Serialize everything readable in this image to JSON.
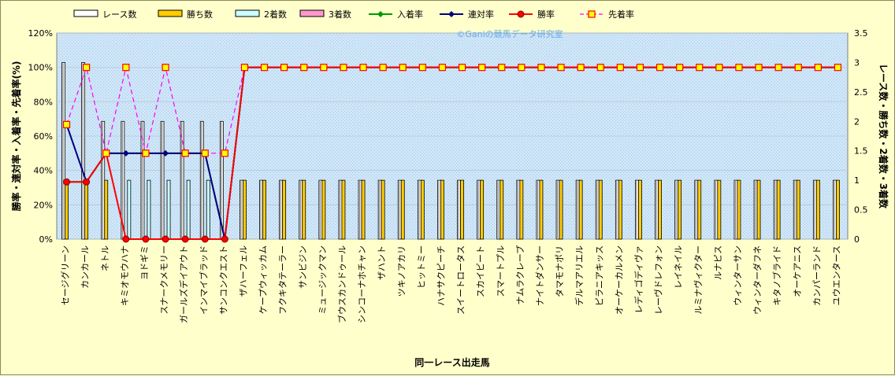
{
  "chart_data": {
    "type": "bar",
    "xlabel": "同一レース出走馬",
    "ylabel_left": "勝率・連対率・入着率・先着率(%)",
    "ylabel_right": "レース数・勝ち数・2着数・3着数",
    "watermark": "©Ganiの競馬データ研究室",
    "ylim_left": [
      0,
      120
    ],
    "ylim_right": [
      0,
      3.5
    ],
    "yticks_left": [
      "0%",
      "20%",
      "40%",
      "60%",
      "80%",
      "100%",
      "120%"
    ],
    "yticks_right": [
      "0",
      "0.5",
      "1",
      "1.5",
      "2",
      "2.5",
      "3",
      "3.5"
    ],
    "grid": true,
    "legend_position": "top",
    "categories": [
      "セージグリーン",
      "カンカール",
      "ネトル",
      "キミオモウハナ",
      "ヨドギミ",
      "スナークメモリー",
      "ガールズデイアウト",
      "インマイブラッド",
      "サンコンクエスト",
      "ザハーフェル",
      "ケープウィッカム",
      "フクキタテーラー",
      "サンビジン",
      "ミュージックマン",
      "ブウスカンドゥール",
      "シンコーナホチャン",
      "ザハント",
      "ツキノアカリ",
      "ヒットミー",
      "ハナサクピーチ",
      "スイートロータス",
      "スカイビート",
      "スマートプル",
      "ナムラクレープ",
      "ナイトダンサー",
      "タマモナポリ",
      "デルマアリエル",
      "ピラニアキッス",
      "オーケーカルメン",
      "レディゴディヴァ",
      "レーヴドレフォン",
      "レイネイル",
      "ルミナヴィクター",
      "ルナピス",
      "ウィンターサン",
      "ウィンターダフネ",
      "キタノブライド",
      "オーケアニス",
      "カンパーランド",
      "ユウエンタース"
    ],
    "series": [
      {
        "name": "レース数",
        "axis": "right",
        "kind": "bar",
        "color": "#ffffff",
        "values": [
          3,
          3,
          2,
          2,
          2,
          2,
          2,
          2,
          2,
          1,
          1,
          1,
          1,
          1,
          1,
          1,
          1,
          1,
          1,
          1,
          1,
          1,
          1,
          1,
          1,
          1,
          1,
          1,
          1,
          1,
          1,
          1,
          1,
          1,
          1,
          1,
          1,
          1,
          1,
          1
        ]
      },
      {
        "name": "勝ち数",
        "axis": "right",
        "kind": "bar",
        "color": "#ffcc00",
        "values": [
          1,
          1,
          1,
          0,
          0,
          0,
          0,
          0,
          0,
          1,
          1,
          1,
          1,
          1,
          1,
          1,
          1,
          1,
          1,
          1,
          1,
          1,
          1,
          1,
          1,
          1,
          1,
          1,
          1,
          1,
          1,
          1,
          1,
          1,
          1,
          1,
          1,
          1,
          1,
          1
        ]
      },
      {
        "name": "2着数",
        "axis": "right",
        "kind": "bar",
        "color": "#ccffff",
        "values": [
          0,
          0,
          0,
          1,
          1,
          1,
          1,
          1,
          0,
          0,
          0,
          0,
          0,
          0,
          0,
          0,
          0,
          0,
          0,
          0,
          0,
          0,
          0,
          0,
          0,
          0,
          0,
          0,
          0,
          0,
          0,
          0,
          0,
          0,
          0,
          0,
          0,
          0,
          0,
          0
        ]
      },
      {
        "name": "3着数",
        "axis": "right",
        "kind": "bar",
        "color": "#ff99cc",
        "values": [
          0,
          0,
          0,
          0,
          0,
          0,
          0,
          0,
          0,
          0,
          0,
          0,
          0,
          0,
          0,
          0,
          0,
          0,
          0,
          0,
          0,
          0,
          0,
          0,
          0,
          0,
          0,
          0,
          0,
          0,
          0,
          0,
          0,
          0,
          0,
          0,
          0,
          0,
          0,
          0
        ]
      },
      {
        "name": "入着率",
        "axis": "left",
        "kind": "line",
        "color": "#009900",
        "values": [
          33.3,
          33.3,
          50,
          50,
          50,
          50,
          50,
          50,
          0,
          100,
          100,
          100,
          100,
          100,
          100,
          100,
          100,
          100,
          100,
          100,
          100,
          100,
          100,
          100,
          100,
          100,
          100,
          100,
          100,
          100,
          100,
          100,
          100,
          100,
          100,
          100,
          100,
          100,
          100,
          100
        ]
      },
      {
        "name": "連対率",
        "axis": "left",
        "kind": "line",
        "color": "#000080",
        "values": [
          66.7,
          33.3,
          50,
          50,
          50,
          50,
          50,
          50,
          0,
          100,
          100,
          100,
          100,
          100,
          100,
          100,
          100,
          100,
          100,
          100,
          100,
          100,
          100,
          100,
          100,
          100,
          100,
          100,
          100,
          100,
          100,
          100,
          100,
          100,
          100,
          100,
          100,
          100,
          100,
          100
        ]
      },
      {
        "name": "勝率",
        "axis": "left",
        "kind": "line",
        "color": "#ff0000",
        "values": [
          33.3,
          33.3,
          50,
          0,
          0,
          0,
          0,
          0,
          0,
          100,
          100,
          100,
          100,
          100,
          100,
          100,
          100,
          100,
          100,
          100,
          100,
          100,
          100,
          100,
          100,
          100,
          100,
          100,
          100,
          100,
          100,
          100,
          100,
          100,
          100,
          100,
          100,
          100,
          100,
          100
        ]
      },
      {
        "name": "先着率",
        "axis": "left",
        "kind": "dashed",
        "color": "#ff00ff",
        "values": [
          66.7,
          100,
          50,
          100,
          50,
          100,
          50,
          50,
          50,
          100,
          100,
          100,
          100,
          100,
          100,
          100,
          100,
          100,
          100,
          100,
          100,
          100,
          100,
          100,
          100,
          100,
          100,
          100,
          100,
          100,
          100,
          100,
          100,
          100,
          100,
          100,
          100,
          100,
          100,
          100
        ]
      }
    ]
  }
}
